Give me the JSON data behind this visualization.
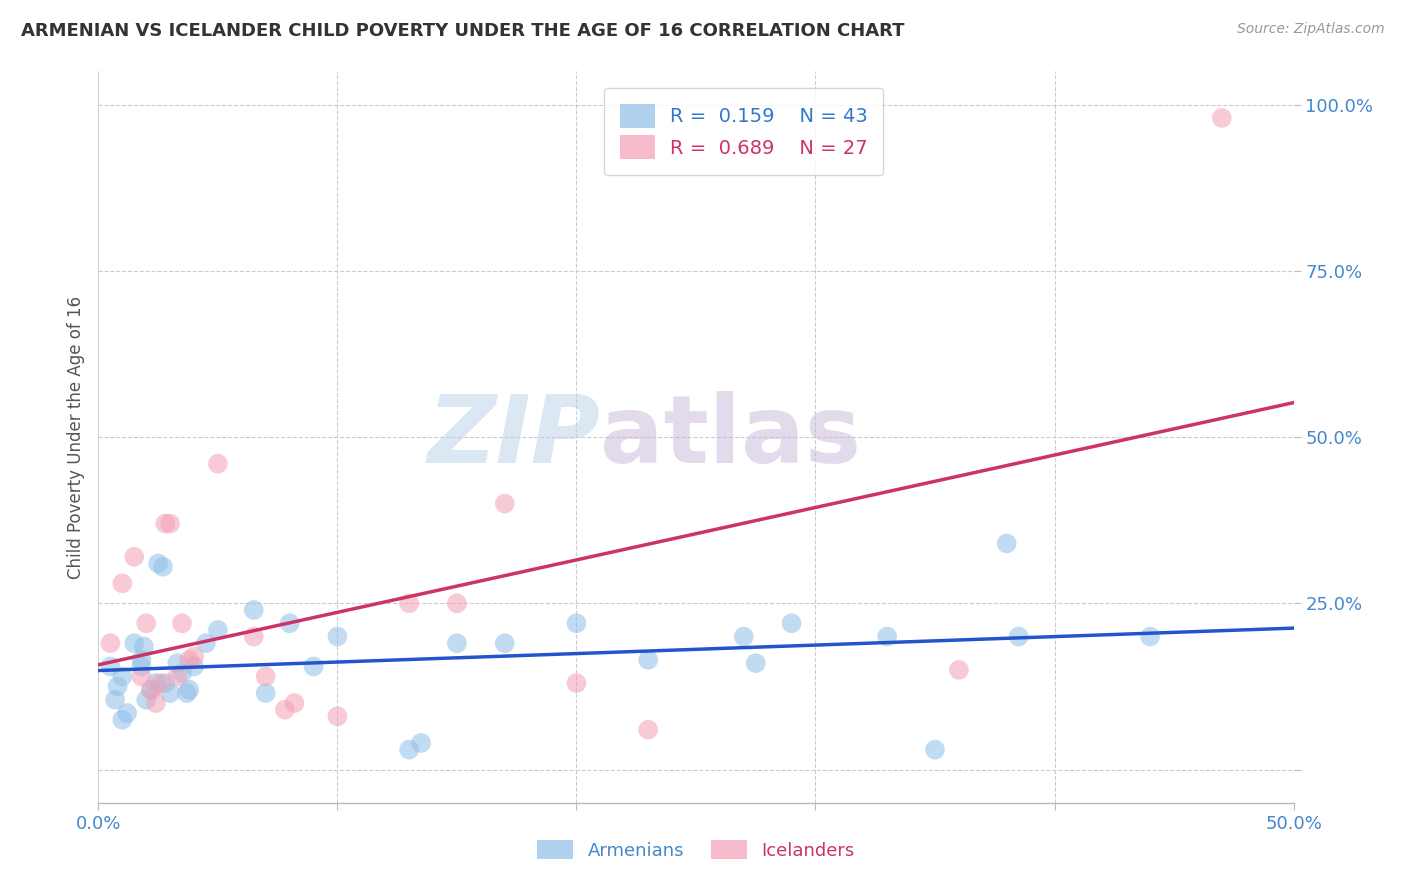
{
  "title": "ARMENIAN VS ICELANDER CHILD POVERTY UNDER THE AGE OF 16 CORRELATION CHART",
  "source": "Source: ZipAtlas.com",
  "ylabel": "Child Poverty Under the Age of 16",
  "xlim": [
    0.0,
    0.5
  ],
  "ylim": [
    -0.05,
    1.05
  ],
  "watermark_zip": "ZIP",
  "watermark_atlas": "atlas",
  "armenian_color": "#8fbfe8",
  "icelander_color": "#f4a0b5",
  "armenian_line_color": "#2255cc",
  "icelander_line_color": "#cc3366",
  "legend_armenian_r": "0.159",
  "legend_armenian_n": "43",
  "legend_icelander_r": "0.689",
  "legend_icelander_n": "27",
  "armenian_x": [
    0.005,
    0.007,
    0.008,
    0.01,
    0.01,
    0.012,
    0.015,
    0.018,
    0.018,
    0.019,
    0.02,
    0.022,
    0.024,
    0.025,
    0.027,
    0.028,
    0.03,
    0.033,
    0.035,
    0.037,
    0.038,
    0.04,
    0.045,
    0.05,
    0.065,
    0.07,
    0.08,
    0.09,
    0.1,
    0.13,
    0.135,
    0.15,
    0.17,
    0.2,
    0.23,
    0.27,
    0.275,
    0.29,
    0.33,
    0.35,
    0.38,
    0.385,
    0.44
  ],
  "armenian_y": [
    0.155,
    0.105,
    0.125,
    0.075,
    0.14,
    0.085,
    0.19,
    0.155,
    0.165,
    0.185,
    0.105,
    0.12,
    0.13,
    0.31,
    0.305,
    0.13,
    0.115,
    0.16,
    0.145,
    0.115,
    0.12,
    0.155,
    0.19,
    0.21,
    0.24,
    0.115,
    0.22,
    0.155,
    0.2,
    0.03,
    0.04,
    0.19,
    0.19,
    0.22,
    0.165,
    0.2,
    0.16,
    0.22,
    0.2,
    0.03,
    0.34,
    0.2,
    0.2
  ],
  "icelander_x": [
    0.005,
    0.01,
    0.015,
    0.018,
    0.02,
    0.022,
    0.024,
    0.026,
    0.028,
    0.03,
    0.033,
    0.035,
    0.038,
    0.04,
    0.05,
    0.065,
    0.07,
    0.078,
    0.082,
    0.1,
    0.13,
    0.15,
    0.17,
    0.2,
    0.23,
    0.36,
    0.47
  ],
  "icelander_y": [
    0.19,
    0.28,
    0.32,
    0.14,
    0.22,
    0.12,
    0.1,
    0.13,
    0.37,
    0.37,
    0.14,
    0.22,
    0.165,
    0.17,
    0.46,
    0.2,
    0.14,
    0.09,
    0.1,
    0.08,
    0.25,
    0.25,
    0.4,
    0.13,
    0.06,
    0.15,
    0.98
  ],
  "background_color": "#ffffff",
  "grid_color": "#cccccc",
  "ytick_positions": [
    0.0,
    0.25,
    0.5,
    0.75,
    1.0
  ],
  "ytick_labels": [
    "",
    "25.0%",
    "50.0%",
    "75.0%",
    "100.0%"
  ],
  "xtick_positions": [
    0.0,
    0.1,
    0.2,
    0.3,
    0.4,
    0.5
  ],
  "xtick_labels": [
    "0.0%",
    "",
    "",
    "",
    "",
    "50.0%"
  ]
}
